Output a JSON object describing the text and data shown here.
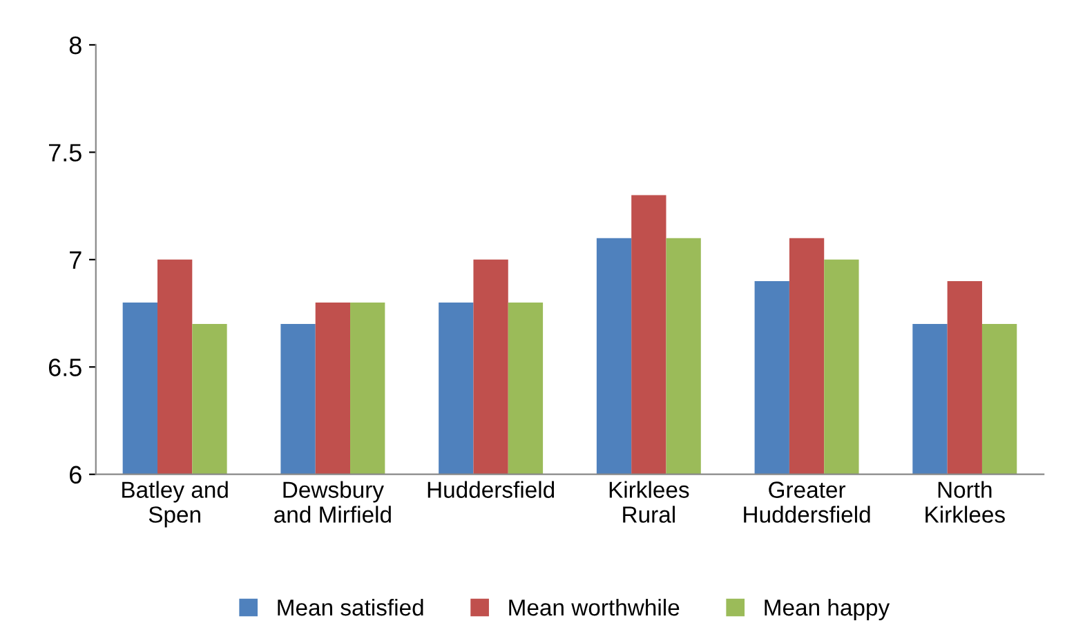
{
  "chart_data": {
    "type": "bar",
    "categories": [
      "Batley and\nSpen",
      "Dewsbury\nand Mirfield",
      "Huddersfield",
      "Kirklees\nRural",
      "Greater\nHuddersfield",
      "North\nKirklees"
    ],
    "series": [
      {
        "name": "Mean satisfied",
        "color": "#4f81bd",
        "values": [
          6.8,
          6.7,
          6.8,
          7.1,
          6.9,
          6.7
        ]
      },
      {
        "name": "Mean worthwhile",
        "color": "#c0504d",
        "values": [
          7.0,
          6.8,
          7.0,
          7.3,
          7.1,
          6.9
        ]
      },
      {
        "name": "Mean happy",
        "color": "#9bbb59",
        "values": [
          6.7,
          6.8,
          6.8,
          7.1,
          7.0,
          6.7
        ]
      }
    ],
    "ylim": [
      6,
      8
    ],
    "yticks": [
      6,
      6.5,
      7,
      7.5,
      8
    ],
    "grid": false,
    "legend": "bottom"
  }
}
